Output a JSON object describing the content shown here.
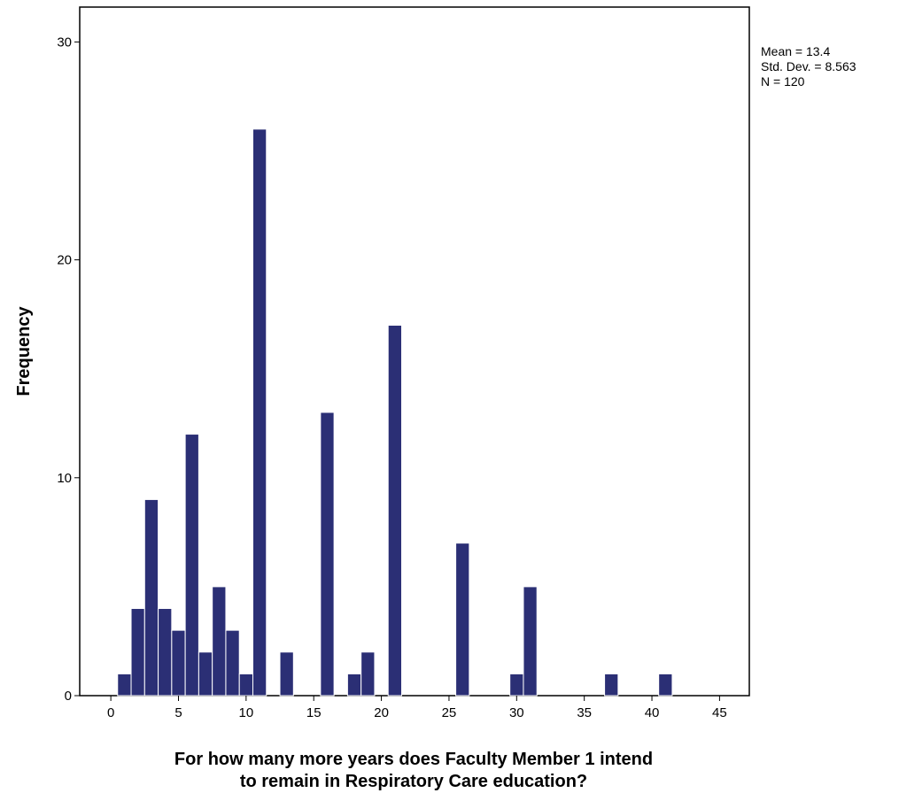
{
  "chart_data": {
    "type": "bar",
    "subtype": "histogram",
    "xlabel_lines": [
      "For how many more years does Faculty Member 1 intend",
      "to remain in Respiratory Care education?"
    ],
    "ylabel": "Frequency",
    "x_ticks": [
      0,
      5,
      10,
      15,
      20,
      25,
      30,
      35,
      40,
      45
    ],
    "y_ticks": [
      0,
      10,
      20,
      30
    ],
    "xlim": [
      -2.3,
      47.2
    ],
    "ylim": [
      0,
      31.6
    ],
    "bin_width": 1,
    "bar_color": "#2b2f75",
    "bars": [
      {
        "x": 1,
        "value": 1
      },
      {
        "x": 2,
        "value": 4
      },
      {
        "x": 3,
        "value": 9
      },
      {
        "x": 4,
        "value": 4
      },
      {
        "x": 5,
        "value": 3
      },
      {
        "x": 6,
        "value": 12
      },
      {
        "x": 7,
        "value": 2
      },
      {
        "x": 8,
        "value": 5
      },
      {
        "x": 9,
        "value": 3
      },
      {
        "x": 10,
        "value": 1
      },
      {
        "x": 11,
        "value": 26
      },
      {
        "x": 13,
        "value": 2
      },
      {
        "x": 16,
        "value": 13
      },
      {
        "x": 18,
        "value": 1
      },
      {
        "x": 19,
        "value": 2
      },
      {
        "x": 21,
        "value": 17
      },
      {
        "x": 26,
        "value": 7
      },
      {
        "x": 30,
        "value": 1
      },
      {
        "x": 31,
        "value": 5
      },
      {
        "x": 37,
        "value": 1
      },
      {
        "x": 41,
        "value": 1
      }
    ],
    "stats": [
      "Mean = 13.4",
      "Std. Dev. = 8.563",
      "N = 120"
    ],
    "legend_position": "top-right"
  }
}
